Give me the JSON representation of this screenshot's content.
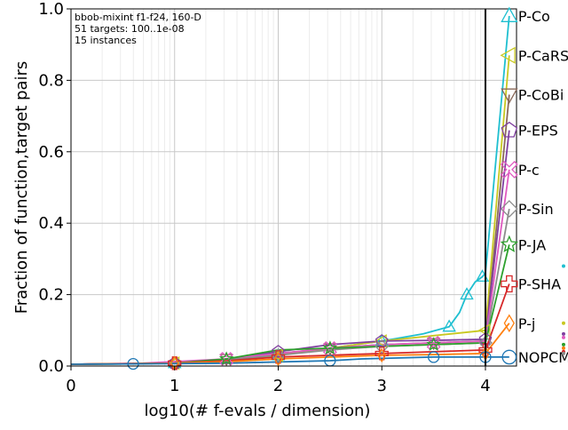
{
  "chart_data": {
    "type": "line",
    "title": "",
    "annotation_lines": [
      "bbob-mixint f1-f24, 160-D",
      "51 targets: 100..1e-08",
      "15 instances"
    ],
    "xlabel": "log10(# f-evals / dimension)",
    "ylabel": "Fraction of function,target pairs",
    "xlim": [
      0,
      4.3
    ],
    "ylim": [
      0,
      1.0
    ],
    "xticks": [
      "0",
      "1",
      "2",
      "3",
      "4"
    ],
    "yticks": [
      "0.0",
      "0.2",
      "0.4",
      "0.6",
      "0.8",
      "1.0"
    ],
    "grid": true,
    "budget_line_x": 4,
    "legend_placement": "right",
    "series": [
      {
        "name": "P-Co",
        "color": "#1fbfd0",
        "marker": "triangle-up",
        "x": [
          0,
          0.5,
          1,
          1.5,
          2,
          2.5,
          3,
          3.4,
          3.65,
          3.75,
          3.82,
          3.9,
          3.97,
          4.0,
          4.23
        ],
        "y": [
          0.005,
          0.006,
          0.008,
          0.015,
          0.03,
          0.05,
          0.07,
          0.09,
          0.11,
          0.15,
          0.2,
          0.235,
          0.25,
          0.26,
          0.98
        ],
        "end_y": 0.98
      },
      {
        "name": "P-CaRS",
        "color": "#c8c820",
        "marker": "triangle-left",
        "x": [
          0,
          1,
          1.5,
          2,
          2.5,
          3,
          3.5,
          4.0,
          4.23
        ],
        "y": [
          0.005,
          0.008,
          0.015,
          0.03,
          0.05,
          0.07,
          0.085,
          0.1,
          0.87
        ],
        "end_y": 0.87
      },
      {
        "name": "P-CoBi",
        "color": "#8a6a5a",
        "marker": "triangle-down",
        "x": [
          0,
          0.9,
          1.5,
          2,
          2.5,
          3,
          3.5,
          4.0,
          4.23
        ],
        "y": [
          0.005,
          0.008,
          0.02,
          0.035,
          0.05,
          0.06,
          0.065,
          0.07,
          0.76
        ],
        "end_y": 0.76
      },
      {
        "name": "P-EPS",
        "color": "#8040a0",
        "marker": "pentagon",
        "x": [
          0,
          1,
          1.5,
          2,
          2.5,
          3,
          3.5,
          4.0,
          4.23
        ],
        "y": [
          0.005,
          0.008,
          0.02,
          0.04,
          0.06,
          0.07,
          0.072,
          0.075,
          0.66
        ],
        "end_y": 0.66
      },
      {
        "name": "P-c",
        "color": "#e05ac0",
        "marker": "x-cross",
        "x": [
          0,
          0.7,
          1.5,
          2,
          2.5,
          3,
          3.5,
          4.0,
          4.23
        ],
        "y": [
          0.005,
          0.008,
          0.02,
          0.035,
          0.05,
          0.06,
          0.065,
          0.07,
          0.55
        ],
        "end_y": 0.55
      },
      {
        "name": "P-Sin",
        "color": "#8c8c8c",
        "marker": "diamond",
        "x": [
          0,
          1,
          1.5,
          2,
          2.5,
          3,
          3.5,
          4.0,
          4.23
        ],
        "y": [
          0.005,
          0.008,
          0.018,
          0.03,
          0.045,
          0.055,
          0.06,
          0.065,
          0.44
        ],
        "end_y": 0.44
      },
      {
        "name": "P-JA",
        "color": "#2ca02c",
        "marker": "star",
        "x": [
          0,
          1,
          1.5,
          2,
          2.5,
          3,
          3.5,
          4.0,
          4.23
        ],
        "y": [
          0.005,
          0.008,
          0.02,
          0.045,
          0.05,
          0.055,
          0.06,
          0.065,
          0.34
        ],
        "end_y": 0.34
      },
      {
        "name": "P-SHA",
        "color": "#d62728",
        "marker": "plus",
        "x": [
          0,
          1,
          1.5,
          2,
          2.5,
          3,
          3.5,
          4.0,
          4.23
        ],
        "y": [
          0.005,
          0.008,
          0.015,
          0.025,
          0.03,
          0.035,
          0.04,
          0.045,
          0.23
        ],
        "end_y": 0.23
      },
      {
        "name": "P-j",
        "color": "#ff7f0e",
        "marker": "thin-diamond",
        "x": [
          0,
          0.5,
          1,
          1.5,
          2,
          2.5,
          3,
          3.5,
          4.0,
          4.23
        ],
        "y": [
          0.005,
          0.006,
          0.008,
          0.012,
          0.02,
          0.025,
          0.03,
          0.032,
          0.035,
          0.12
        ],
        "end_y": 0.12
      },
      {
        "name": "NOPCM",
        "color": "#1f77b4",
        "marker": "circle",
        "x": [
          0,
          0.6,
          1.5,
          2.5,
          2.8,
          3.5,
          3.6,
          4.0,
          4.23
        ],
        "y": [
          0.005,
          0.006,
          0.008,
          0.015,
          0.02,
          0.025,
          0.025,
          0.025,
          0.025
        ],
        "end_y": 0.025
      }
    ],
    "right_dots": [
      {
        "color": "#1fbfd0",
        "y": 0.28
      },
      {
        "color": "#c8c820",
        "y": 0.12
      },
      {
        "color": "#8040a0",
        "y": 0.09
      },
      {
        "color": "#e05ac0",
        "y": 0.08
      },
      {
        "color": "#2ca02c",
        "y": 0.06
      },
      {
        "color": "#ff7f0e",
        "y": 0.05
      },
      {
        "color": "#d62728",
        "y": 0.04
      },
      {
        "color": "#8c8c8c",
        "y": 0.035
      }
    ]
  }
}
